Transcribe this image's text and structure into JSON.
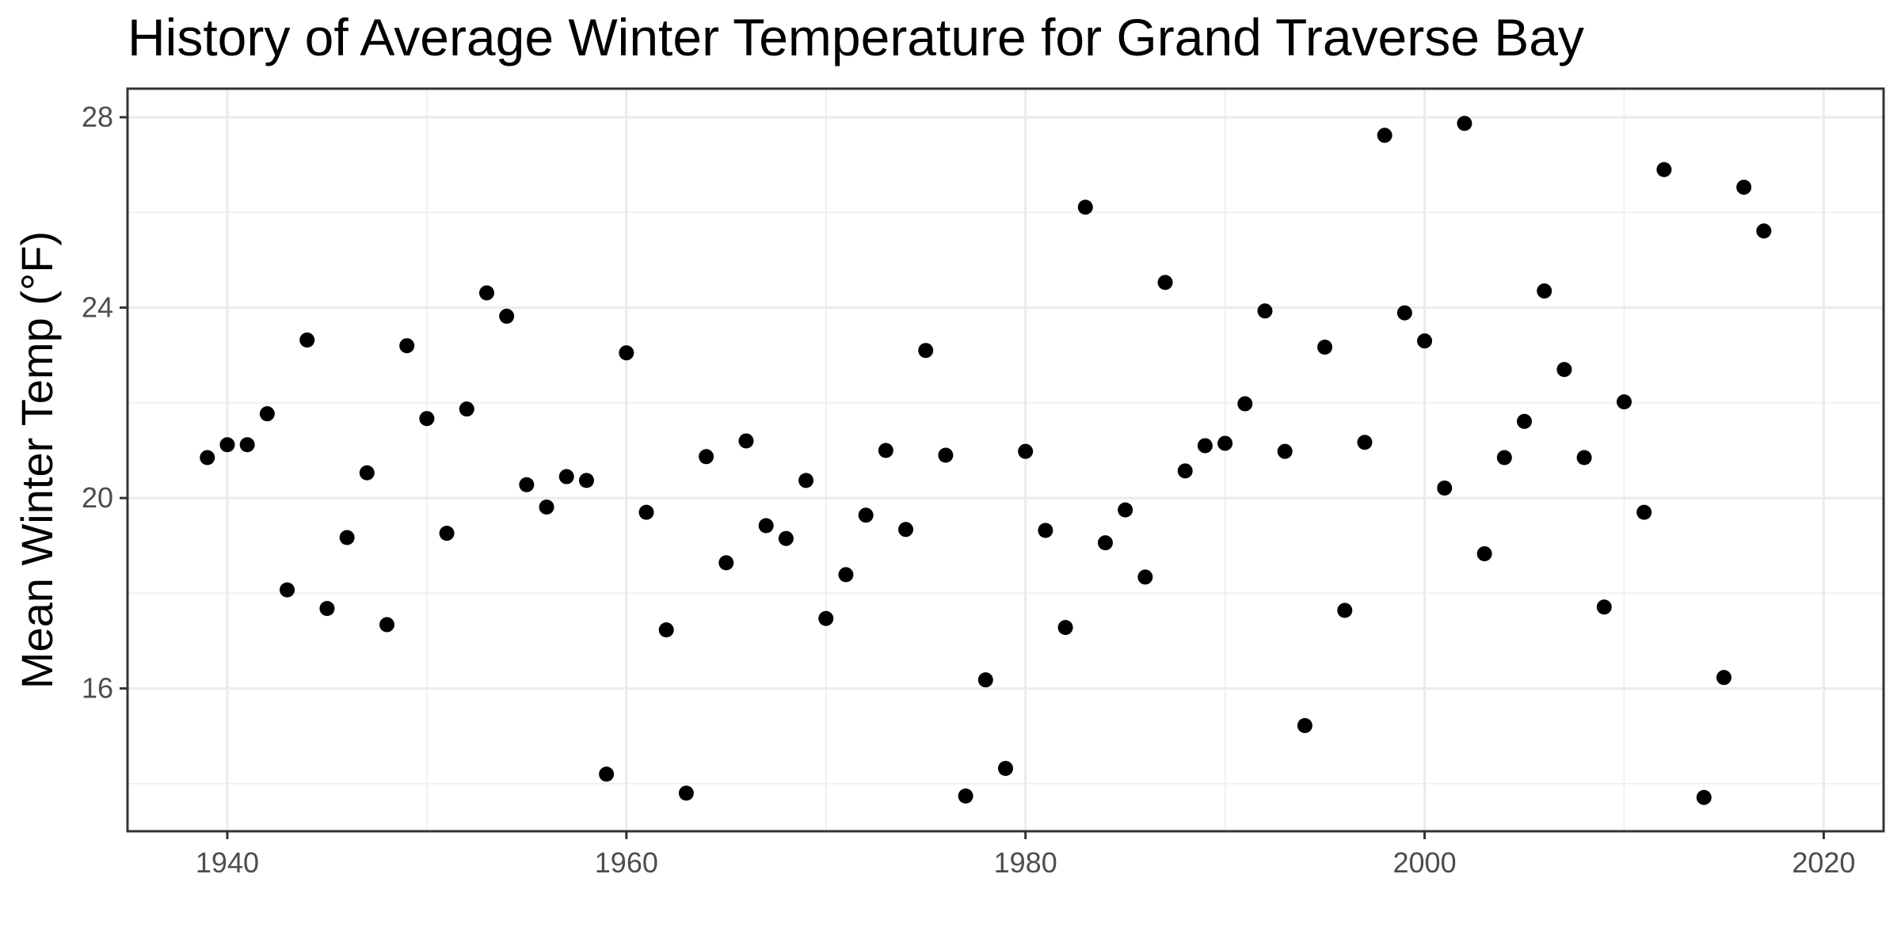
{
  "chart_data": {
    "type": "scatter",
    "title": "History of Average Winter Temperature for Grand Traverse Bay",
    "xlabel": "",
    "ylabel": "Mean Winter Temp (°F)",
    "xlim": [
      1935,
      2023
    ],
    "ylim": [
      13.0,
      28.6
    ],
    "x_ticks": [
      1940,
      1960,
      1980,
      2000,
      2020
    ],
    "x_tick_labels": [
      "1940",
      "1960",
      "1980",
      "2000",
      "2020"
    ],
    "y_ticks": [
      16,
      20,
      24,
      28
    ],
    "y_tick_labels": [
      "16",
      "20",
      "24",
      "28"
    ],
    "grid": true,
    "legend": "none",
    "point_color": "#000000",
    "series": [
      {
        "x": [
          1939,
          1940,
          1941,
          1942,
          1943,
          1944,
          1945,
          1946,
          1947,
          1948,
          1949,
          1950,
          1951,
          1952,
          1953,
          1954,
          1955,
          1956,
          1957,
          1958,
          1959,
          1960,
          1961,
          1962,
          1963,
          1964,
          1965,
          1966,
          1967,
          1968,
          1969,
          1970,
          1971,
          1972,
          1973,
          1974,
          1975,
          1976,
          1977,
          1978,
          1979,
          1980,
          1981,
          1982,
          1983,
          1984,
          1985,
          1986,
          1987,
          1988,
          1989,
          1990,
          1991,
          1992,
          1993,
          1994,
          1995,
          1996,
          1997,
          1998,
          1999,
          2000,
          2001,
          2002,
          2003,
          2004,
          2005,
          2006,
          2007,
          2008,
          2009,
          2010,
          2011,
          2012,
          2014,
          2015,
          2016,
          2017
        ],
        "y": [
          20.85,
          21.12,
          21.12,
          21.77,
          18.07,
          23.32,
          17.68,
          19.17,
          20.53,
          17.34,
          23.2,
          21.67,
          19.26,
          21.87,
          24.31,
          23.82,
          20.28,
          19.81,
          20.45,
          20.37,
          14.2,
          23.05,
          19.7,
          17.23,
          13.8,
          20.87,
          18.64,
          21.2,
          19.42,
          19.15,
          20.37,
          17.47,
          18.39,
          19.64,
          21.0,
          19.34,
          23.1,
          20.9,
          13.74,
          16.18,
          14.32,
          20.98,
          19.32,
          17.28,
          26.11,
          19.06,
          19.75,
          18.34,
          24.53,
          20.57,
          21.1,
          21.15,
          21.98,
          23.93,
          20.98,
          15.22,
          23.17,
          17.64,
          21.17,
          27.62,
          23.89,
          23.3,
          20.21,
          27.87,
          18.83,
          20.85,
          21.61,
          24.35,
          22.7,
          20.85,
          17.71,
          22.02,
          19.7,
          26.9,
          13.71,
          16.23,
          26.53,
          25.61
        ]
      }
    ]
  }
}
